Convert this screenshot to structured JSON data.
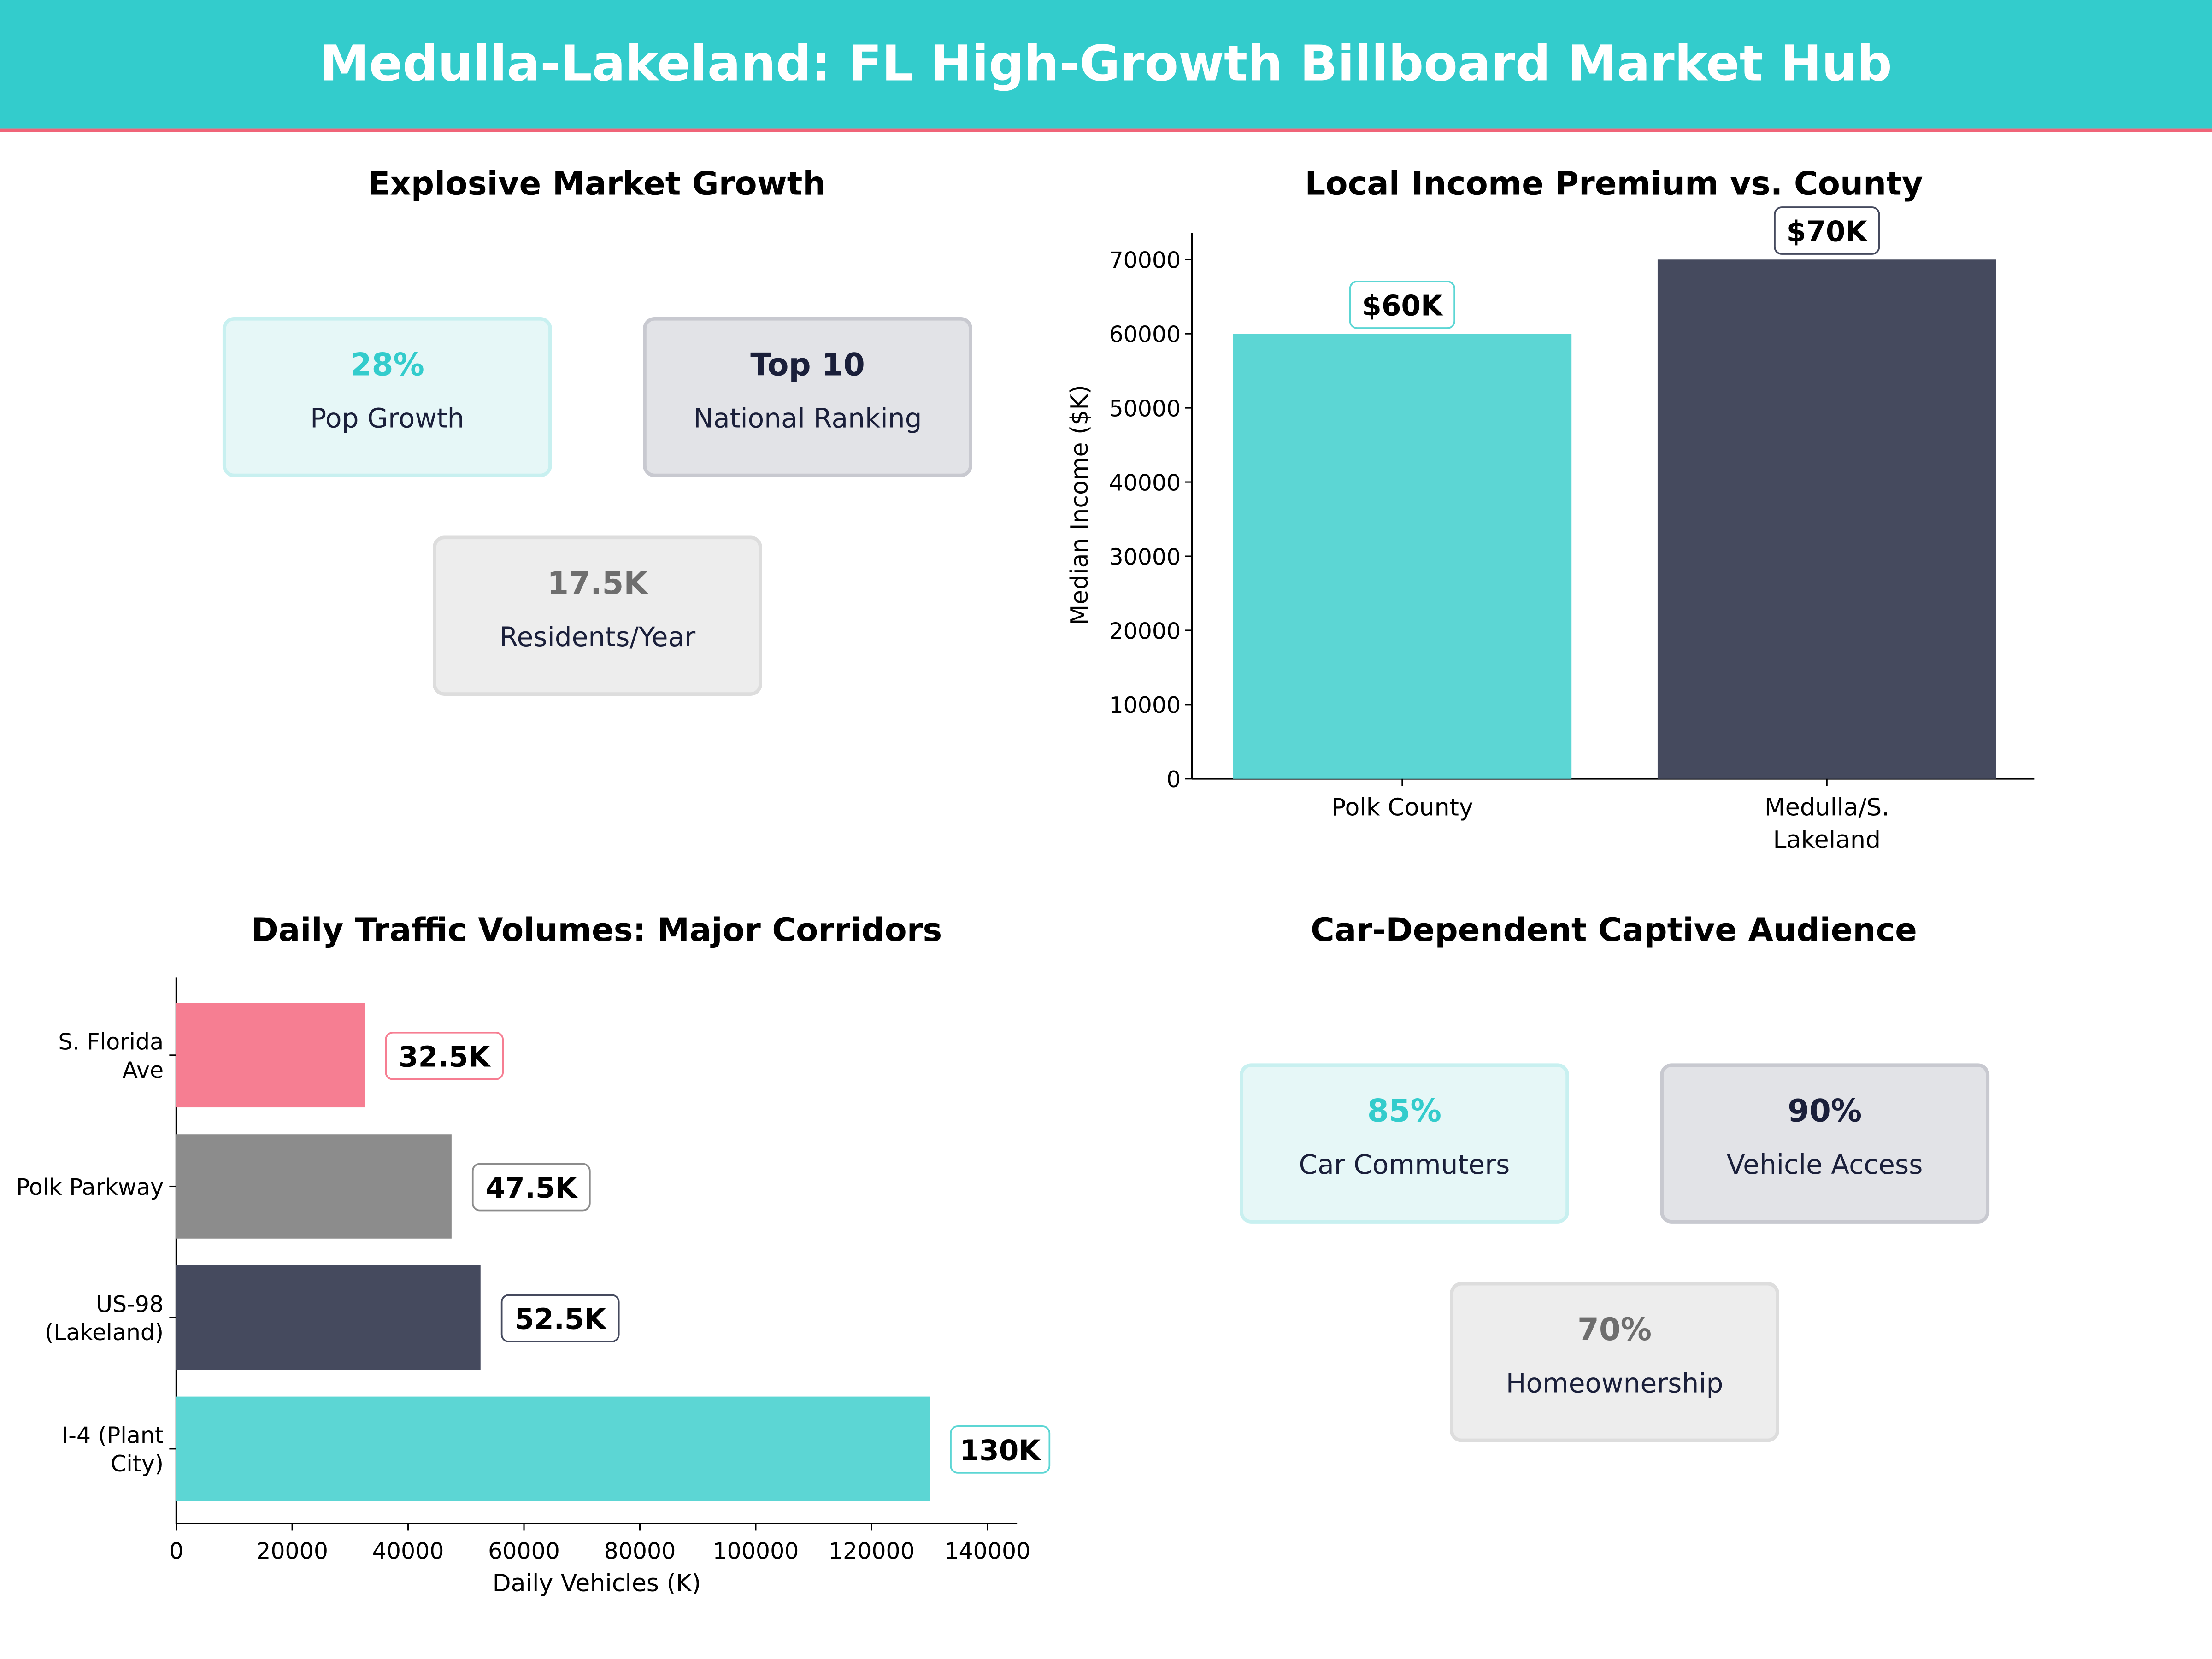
{
  "header": {
    "title": "Medulla-Lakeland: FL High-Growth Billboard Market Hub",
    "colors": {
      "banner": "#33CCCC",
      "accent_line": "#F06478"
    }
  },
  "growth_panel": {
    "title": "Explosive Market Growth",
    "cards": [
      {
        "value": "28%",
        "label": "Pop Growth",
        "value_color": "#33CCCC",
        "fill": "#E6F7F7",
        "border": "#C8F0F0"
      },
      {
        "value": "Top 10",
        "label": "National Ranking",
        "value_color": "#1A1F3A",
        "fill": "#E2E3E7",
        "border": "#C8C9D0"
      },
      {
        "value": "17.5K",
        "label": "Residents/Year",
        "value_color": "#6E6E6E",
        "fill": "#EDEDED",
        "border": "#DDDDDD"
      }
    ]
  },
  "audience_panel": {
    "title": "Car-Dependent Captive Audience",
    "cards": [
      {
        "value": "85%",
        "label": "Car Commuters",
        "value_color": "#33CCCC",
        "fill": "#E6F7F7",
        "border": "#C8F0F0"
      },
      {
        "value": "90%",
        "label": "Vehicle Access",
        "value_color": "#1A1F3A",
        "fill": "#E2E3E7",
        "border": "#C8C9D0"
      },
      {
        "value": "70%",
        "label": "Homeownership",
        "value_color": "#6E6E6E",
        "fill": "#EDEDED",
        "border": "#DDDDDD"
      }
    ]
  },
  "chart_data": [
    {
      "type": "bar",
      "title": "Local Income Premium vs. County",
      "xlabel": "",
      "ylabel": "Median Income ($K)",
      "categories": [
        [
          "Polk County"
        ],
        [
          "Medulla/S.",
          "Lakeland"
        ]
      ],
      "values": [
        60000,
        70000
      ],
      "data_labels": [
        "$60K",
        "$70K"
      ],
      "colors": [
        "#5CD6D4",
        "#454A5E"
      ],
      "ylim": [
        0,
        70000
      ],
      "yticks": [
        "0",
        "10000",
        "20000",
        "30000",
        "40000",
        "50000",
        "60000",
        "70000"
      ],
      "grid": false
    },
    {
      "type": "bar",
      "orientation": "horizontal",
      "title": "Daily Traffic Volumes: Major Corridors",
      "xlabel": "Daily Vehicles (K)",
      "ylabel": "",
      "categories": [
        [
          "S. Florida",
          "Ave"
        ],
        [
          "Polk Parkway"
        ],
        [
          "US-98",
          "(Lakeland)"
        ],
        [
          "I-4 (Plant",
          "City)"
        ]
      ],
      "values": [
        32500,
        47500,
        52500,
        130000
      ],
      "data_labels": [
        "32.5K",
        "47.5K",
        "52.5K",
        "130K"
      ],
      "colors": [
        "#F67E92",
        "#8C8C8C",
        "#454A5E",
        "#5CD6D4"
      ],
      "xlim": [
        0,
        140000
      ],
      "xticks": [
        "0",
        "20000",
        "40000",
        "60000",
        "80000",
        "100000",
        "120000",
        "140000"
      ],
      "grid": false
    }
  ]
}
